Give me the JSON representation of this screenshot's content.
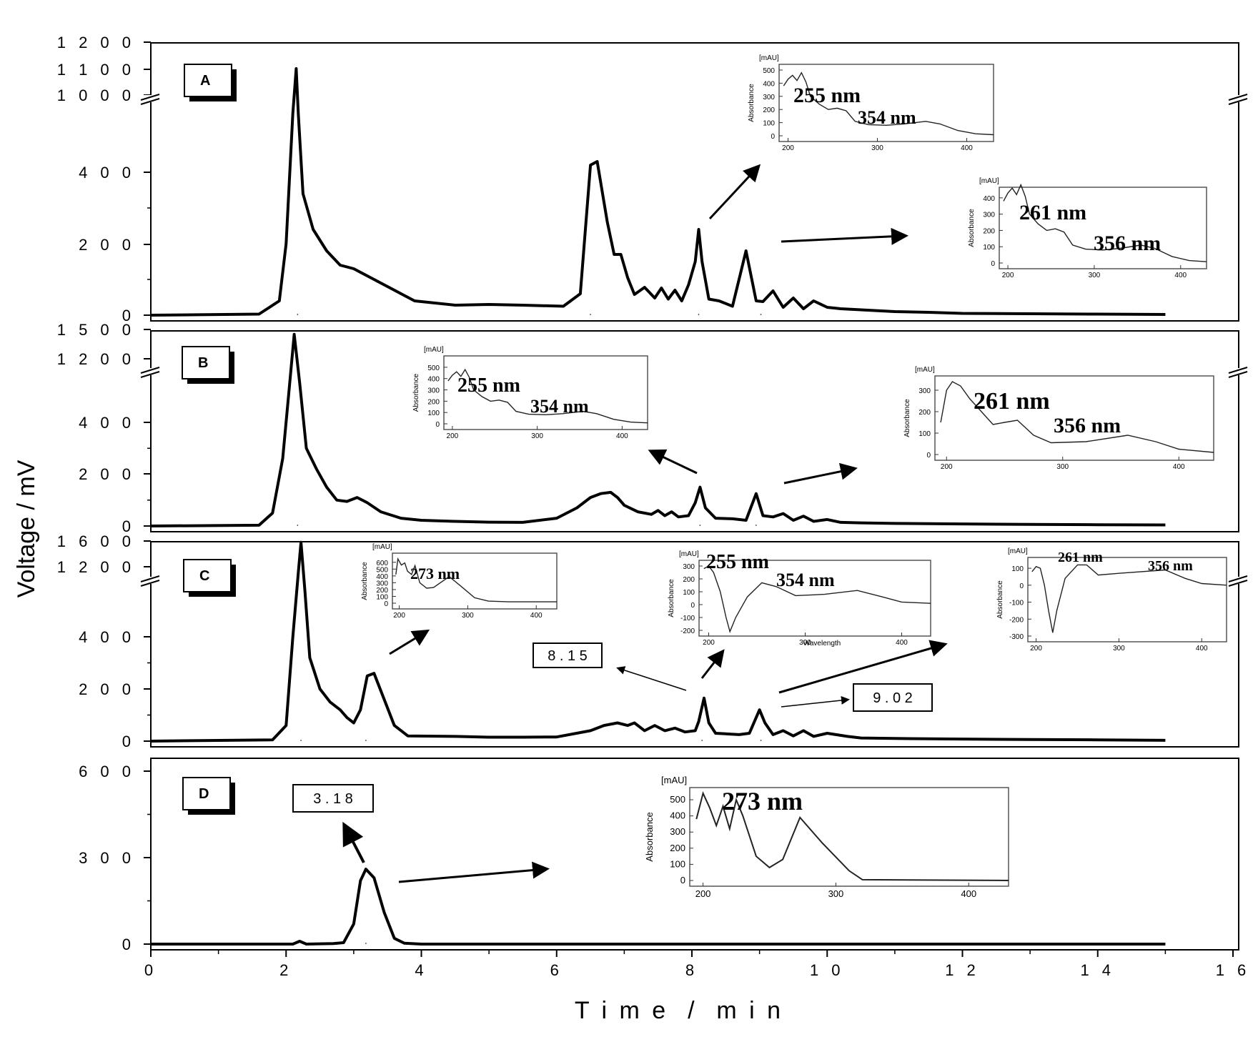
{
  "chart_data": {
    "type": "line",
    "xlabel": "T i m e  /  m i n",
    "ylabel": "Voltage / mV",
    "x_ticks": [
      "0",
      "2",
      "4",
      "6",
      "8",
      "1 0",
      "1 2",
      "1 4",
      "1 6"
    ],
    "xlim": [
      0,
      16
    ],
    "panels": [
      {
        "label": "A",
        "y_ticks_low": [
          "0",
          "2 0 0",
          "4 0 0"
        ],
        "y_ticks_high": [
          "1 0 0 0",
          "1 1 0 0",
          "1 2 0 0"
        ],
        "ylim": [
          0,
          1200
        ],
        "axis_break": [
          500,
          1000
        ],
        "series": [
          {
            "x": [
              0,
              1.6,
              1.9,
              2.0,
              2.1,
              2.15,
              2.18,
              2.25,
              2.4,
              2.6,
              2.8,
              3.0,
              3.2,
              3.5,
              3.9,
              4.5,
              5.0,
              5.5,
              6.1,
              6.35,
              6.5,
              6.6,
              6.75,
              6.85,
              6.95,
              7.05,
              7.15,
              7.3,
              7.45,
              7.55,
              7.65,
              7.75,
              7.85,
              7.95,
              8.05,
              8.1,
              8.15,
              8.25,
              8.4,
              8.6,
              8.8,
              8.95,
              9.05,
              9.2,
              9.35,
              9.5,
              9.65,
              9.8,
              10.0,
              10.2,
              10.4,
              10.6,
              11.0,
              11.5,
              12.0,
              13.0,
              14.0,
              15.0
            ],
            "y": [
              0,
              3,
              40,
              200,
              780,
              1100,
              780,
              340,
              240,
              180,
              140,
              130,
              110,
              80,
              40,
              28,
              30,
              28,
              25,
              60,
              420,
              430,
              260,
              170,
              170,
              105,
              58,
              78,
              48,
              76,
              45,
              70,
              40,
              85,
              150,
              240,
              150,
              45,
              40,
              25,
              180,
              40,
              38,
              68,
              22,
              48,
              18,
              40,
              22,
              18,
              16,
              14,
              10,
              8,
              5,
              4,
              3,
              2
            ]
          }
        ],
        "peaks": [
          2.17,
          6.5,
          8.1,
          9.02
        ],
        "insets": [
          {
            "unit": "[mAU]",
            "ylabel": "Absorbance",
            "yticks": [
              "0",
              "100",
              "200",
              "300",
              "400",
              "500"
            ],
            "xticks": [
              "200",
              "300",
              "400"
            ],
            "labels": [
              "255 nm",
              "354 nm"
            ]
          },
          {
            "unit": "[mAU]",
            "ylabel": "Absorbance",
            "yticks": [
              "0",
              "100",
              "200",
              "300",
              "400"
            ],
            "xticks": [
              "200",
              "300",
              "400"
            ],
            "labels": [
              "261 nm",
              "356 nm"
            ]
          }
        ]
      },
      {
        "label": "B",
        "y_ticks_low": [
          "0",
          "2 0 0",
          "4 0 0"
        ],
        "y_ticks_high": [
          "1 2 0 0",
          "1 5 0 0"
        ],
        "ylim": [
          0,
          1500
        ],
        "axis_break": [
          500,
          1200
        ],
        "series": [
          {
            "x": [
              0,
              1.6,
              1.8,
              1.95,
              2.05,
              2.12,
              2.2,
              2.3,
              2.45,
              2.6,
              2.75,
              2.9,
              3.05,
              3.2,
              3.4,
              3.7,
              4.0,
              4.5,
              5.0,
              5.5,
              6.0,
              6.3,
              6.5,
              6.65,
              6.8,
              6.9,
              7.0,
              7.2,
              7.4,
              7.5,
              7.6,
              7.7,
              7.8,
              7.95,
              8.05,
              8.12,
              8.2,
              8.35,
              8.6,
              8.8,
              8.95,
              9.05,
              9.2,
              9.35,
              9.5,
              9.65,
              9.8,
              10.0,
              10.2,
              10.5,
              11.0,
              12.0,
              13.0,
              14.0,
              15.0
            ],
            "y": [
              0,
              3,
              50,
              260,
              700,
              1450,
              760,
              300,
              220,
              150,
              100,
              95,
              110,
              90,
              55,
              30,
              22,
              18,
              15,
              14,
              30,
              70,
              110,
              125,
              130,
              110,
              80,
              55,
              45,
              60,
              40,
              55,
              35,
              40,
              90,
              150,
              70,
              30,
              28,
              22,
              125,
              40,
              35,
              48,
              22,
              38,
              18,
              25,
              14,
              12,
              10,
              8,
              6,
              5,
              4
            ]
          }
        ],
        "peaks": [
          2.17,
          8.12,
          8.95
        ],
        "insets": [
          {
            "unit": "[mAU]",
            "ylabel": "Absorbance",
            "yticks": [
              "0",
              "100",
              "200",
              "300",
              "400",
              "500"
            ],
            "xticks": [
              "200",
              "300",
              "400"
            ],
            "labels": [
              "255 nm",
              "354 nm"
            ]
          },
          {
            "unit": "[mAU]",
            "ylabel": "Absorbance",
            "yticks": [
              "0",
              "100",
              "200",
              "300"
            ],
            "xticks": [
              "200",
              "300",
              "400"
            ],
            "labels": [
              "261 nm",
              "356 nm"
            ]
          }
        ]
      },
      {
        "label": "C",
        "y_ticks_low": [
          "0",
          "2 0 0",
          "4 0 0"
        ],
        "y_ticks_high": [
          "1 2 0 0",
          "1 6 0 0"
        ],
        "ylim": [
          0,
          1600
        ],
        "axis_break": [
          500,
          1200
        ],
        "series": [
          {
            "x": [
              0,
              1.8,
              2.0,
              2.1,
              2.18,
              2.22,
              2.28,
              2.35,
              2.5,
              2.65,
              2.8,
              2.9,
              3.0,
              3.1,
              3.2,
              3.3,
              3.45,
              3.6,
              3.8,
              4.5,
              5.0,
              5.5,
              6.0,
              6.5,
              6.7,
              6.9,
              7.05,
              7.15,
              7.3,
              7.45,
              7.6,
              7.75,
              7.9,
              8.05,
              8.1,
              8.18,
              8.25,
              8.35,
              8.5,
              8.7,
              8.85,
              9.0,
              9.08,
              9.2,
              9.35,
              9.5,
              9.65,
              9.8,
              10.0,
              10.3,
              10.5,
              11.0,
              12.0,
              13.0,
              14.0,
              15.0
            ],
            "y": [
              0,
              5,
              60,
              400,
              1100,
              1580,
              800,
              320,
              200,
              150,
              120,
              90,
              70,
              120,
              250,
              260,
              160,
              60,
              20,
              18,
              15,
              15,
              16,
              40,
              60,
              70,
              60,
              70,
              40,
              60,
              40,
              50,
              35,
              40,
              75,
              165,
              70,
              30,
              28,
              25,
              30,
              120,
              70,
              25,
              40,
              20,
              40,
              18,
              30,
              18,
              12,
              10,
              8,
              6,
              5,
              3
            ]
          }
        ],
        "peaks": [
          2.22,
          3.18,
          8.15,
          9.02
        ],
        "callouts": [
          "8 . 1 5",
          "9 . 0 2"
        ],
        "insets": [
          {
            "unit": "[mAU]",
            "ylabel": "Absorbance",
            "yticks": [
              "0",
              "100",
              "200",
              "300",
              "400",
              "500",
              "600"
            ],
            "xticks": [
              "200",
              "300",
              "400"
            ],
            "labels": [
              "273 nm"
            ]
          },
          {
            "unit": "[mAU]",
            "ylabel": "Absorbance",
            "xlabel": "Wavelength",
            "yticks": [
              "-200",
              "-100",
              "0",
              "100",
              "200",
              "300"
            ],
            "xticks": [
              "200",
              "300",
              "400"
            ],
            "labels": [
              "255 nm",
              "354 nm"
            ]
          },
          {
            "unit": "[mAU]",
            "ylabel": "Absorbance",
            "yticks": [
              "-300",
              "-200",
              "-100",
              "0",
              "100"
            ],
            "xticks": [
              "200",
              "300",
              "400"
            ],
            "labels": [
              "261 nm",
              "356 nm"
            ]
          }
        ]
      },
      {
        "label": "D",
        "y_ticks_low": [
          "0",
          "3 0 0",
          "6 0 0"
        ],
        "ylim": [
          0,
          600
        ],
        "series": [
          {
            "x": [
              0,
              2.1,
              2.2,
              2.3,
              2.7,
              2.85,
              3.0,
              3.1,
              3.18,
              3.3,
              3.45,
              3.6,
              3.75,
              4.0,
              6.0,
              8.0,
              10.0,
              12.0,
              14.0,
              15.0
            ],
            "y": [
              0,
              0,
              10,
              0,
              2,
              5,
              70,
              220,
              260,
              230,
              110,
              20,
              3,
              0,
              0,
              0,
              0,
              0,
              0,
              0
            ]
          }
        ],
        "peaks": [
          3.18
        ],
        "callouts": [
          "3 . 1 8"
        ],
        "insets": [
          {
            "unit": "[mAU]",
            "ylabel": "Absorbance",
            "yticks": [
              "0",
              "100",
              "200",
              "300",
              "400",
              "500"
            ],
            "xticks": [
              "200",
              "300",
              "400"
            ],
            "labels": [
              "273 nm"
            ]
          }
        ]
      }
    ]
  }
}
